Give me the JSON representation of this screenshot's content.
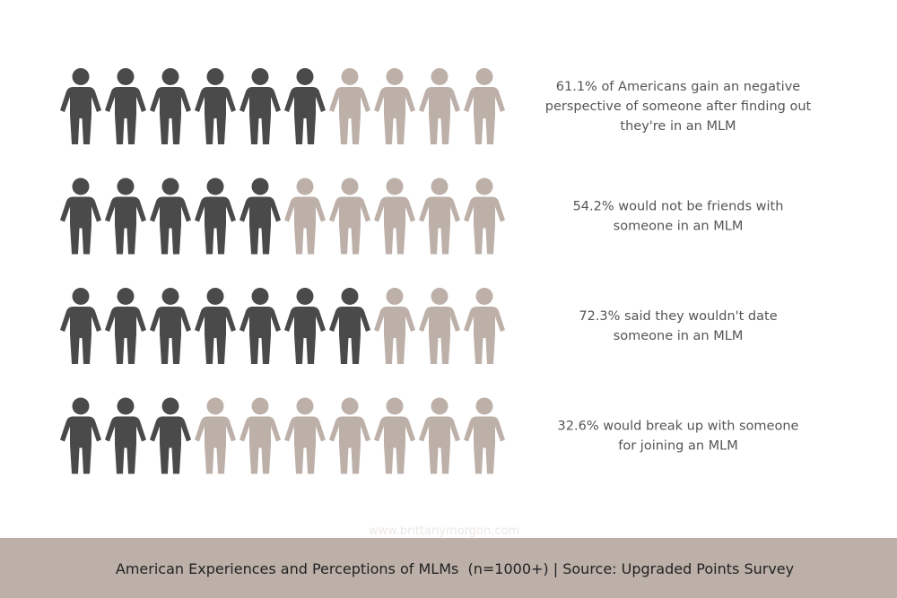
{
  "chart_data": {
    "type": "pictogram",
    "total": 10,
    "color": "#4a4a4a",
    "rest_color": "#bdb0a9",
    "rows": [
      {
        "label": [
          "61.1% of Americans gain an negative",
          "perspective of someone after finding out",
          "they're in an MLM"
        ],
        "value": 6
      },
      {
        "label": [
          "54.2% would not be friends with",
          "someone in an MLM"
        ],
        "value": 5
      },
      {
        "label": [
          "72.3% said they wouldn't date",
          "someone in an MLM"
        ],
        "value": 7
      },
      {
        "label": [
          "32.6% would break up with someone",
          "for joining an MLM"
        ],
        "value": 3
      }
    ],
    "watermark": "www.brittanymorgon.com",
    "footer": "American Experiences and Perceptions of MLMs  (n=1000+) | Source: Upgraded Points Survey",
    "footer_color": "#bcb0a8"
  }
}
